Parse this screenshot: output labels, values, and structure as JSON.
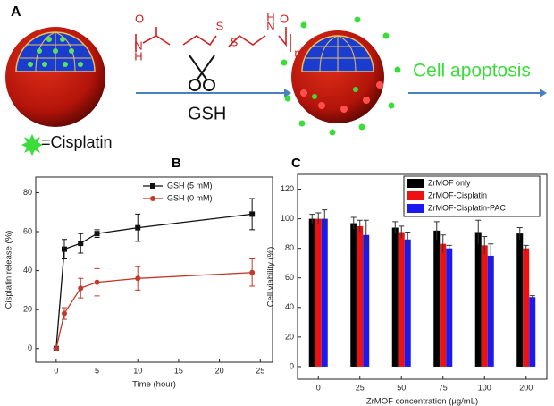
{
  "diagram": {
    "label": "A",
    "structure_labels": [
      "O",
      "N",
      "H",
      "S",
      "S",
      "N",
      "H",
      "O",
      "n"
    ],
    "reagent": "GSH",
    "outcome": "Cell apoptosis",
    "legend": "=Cisplatin"
  },
  "chart_data": [
    {
      "type": "line",
      "panel_label": "B",
      "x_label": "Time (hour)",
      "y_label": "Cisplatin release (%)",
      "x": [
        0,
        1,
        3,
        5,
        10,
        24
      ],
      "series": [
        {
          "name": "GSH (5 mM)",
          "color": "#111111",
          "marker": "square",
          "values": [
            0,
            51,
            54,
            59,
            62,
            69
          ],
          "errors": [
            0,
            5,
            5,
            2,
            7,
            8
          ]
        },
        {
          "name": "GSH (0 mM)",
          "color": "#c0392b",
          "marker": "circle",
          "values": [
            0,
            18,
            31,
            34,
            36,
            39
          ],
          "errors": [
            0,
            3,
            5,
            7,
            6,
            7
          ]
        }
      ],
      "xlim": [
        -2.5,
        26.5
      ],
      "ylim": [
        -7,
        88
      ],
      "xticks": [
        0,
        5,
        10,
        15,
        20,
        25
      ],
      "yticks": [
        0,
        20,
        40,
        60,
        80
      ],
      "legend": "upper left"
    },
    {
      "type": "bar",
      "panel_label": "C",
      "x_label": "ZrMOF concentration (μg/mL)",
      "y_label": "Cell viability (%)",
      "categories": [
        "0",
        "25",
        "50",
        "75",
        "100",
        "200"
      ],
      "series": [
        {
          "name": "ZrMOF only",
          "color": "#000000",
          "values": [
            100,
            97,
            94,
            92,
            91,
            90
          ],
          "errors": [
            3,
            4,
            4,
            6,
            8,
            4
          ]
        },
        {
          "name": "ZrMOF-Cisplatin",
          "color": "#ee1111",
          "values": [
            100,
            95,
            91,
            83,
            82,
            80
          ],
          "errors": [
            4,
            4,
            4,
            6,
            6,
            2
          ]
        },
        {
          "name": "ZrMOF-Cisplatin-PAC",
          "color": "#1a1aee",
          "values": [
            100,
            89,
            86,
            80,
            75,
            47
          ],
          "errors": [
            6,
            10,
            5,
            2,
            8,
            1
          ]
        }
      ],
      "ylim": [
        -8.5,
        130
      ],
      "yticks": [
        0,
        20,
        40,
        60,
        80,
        100,
        120
      ],
      "legend": "upper right"
    }
  ]
}
